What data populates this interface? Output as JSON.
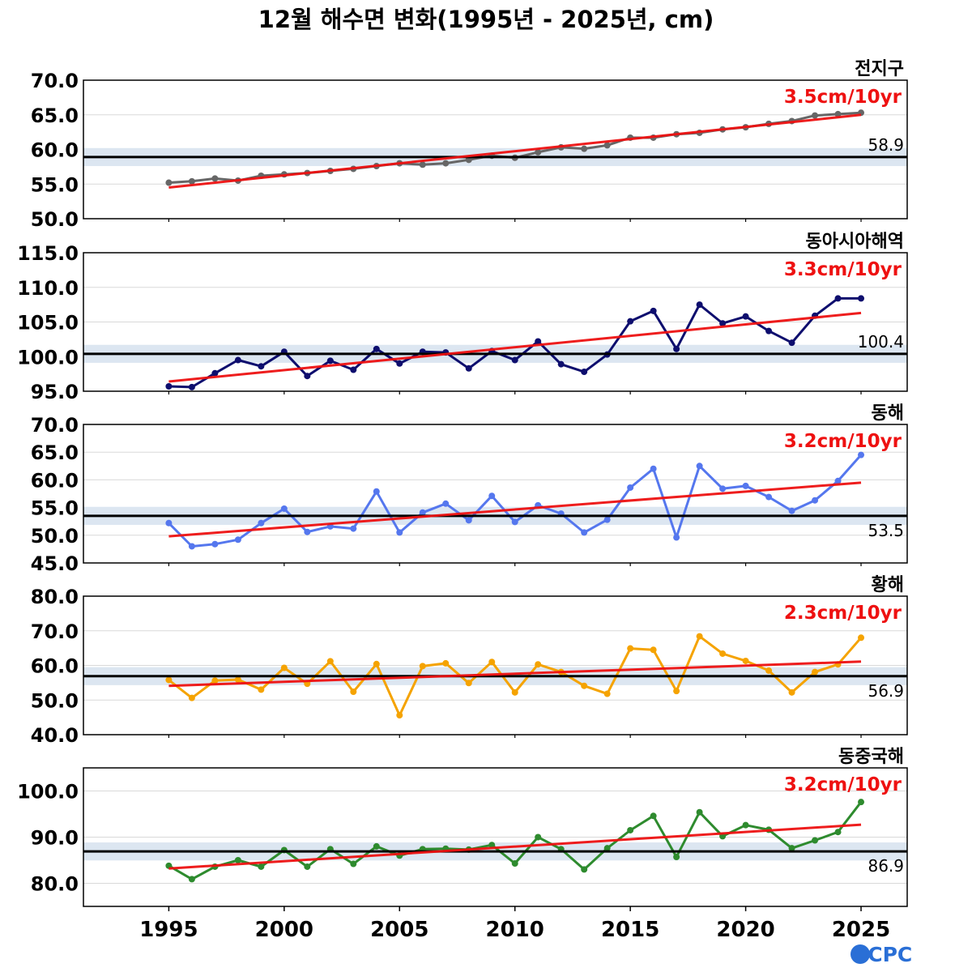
{
  "title": "12월 해수면 변화(1995년 - 2025년, cm)",
  "logo_text": "OCPC",
  "colors": {
    "trend": "#ee1111",
    "mean_line": "#000000",
    "mean_band": "#dce6f1",
    "grid": "#d9d9d9"
  },
  "chart_data": [
    {
      "type": "line",
      "name": "전지구",
      "trend_label": "3.5cm/10yr",
      "mean_label": "58.9",
      "mean": 58.9,
      "color": "#666666",
      "ylim": [
        50,
        70
      ],
      "yticks": [
        50,
        55,
        60,
        65,
        70
      ],
      "yticklabels": [
        "50.0",
        "55.0",
        "60.0",
        "65.0",
        "70.0"
      ],
      "x": [
        1995,
        1996,
        1997,
        1998,
        1999,
        2000,
        2001,
        2002,
        2003,
        2004,
        2005,
        2006,
        2007,
        2008,
        2009,
        2010,
        2011,
        2012,
        2013,
        2014,
        2015,
        2016,
        2017,
        2018,
        2019,
        2020,
        2021,
        2022,
        2023,
        2024,
        2025
      ],
      "values": [
        55.2,
        55.4,
        55.8,
        55.5,
        56.2,
        56.4,
        56.6,
        56.9,
        57.2,
        57.6,
        58.0,
        57.8,
        58.0,
        58.5,
        59.1,
        58.8,
        59.6,
        60.3,
        60.1,
        60.6,
        61.7,
        61.7,
        62.2,
        62.4,
        62.9,
        63.2,
        63.7,
        64.1,
        64.9,
        65.1,
        65.3
      ],
      "trend": [
        54.5,
        65.0
      ]
    },
    {
      "type": "line",
      "name": "동아시아해역",
      "trend_label": "3.3cm/10yr",
      "mean_label": "100.4",
      "mean": 100.4,
      "color": "#0e0e6e",
      "ylim": [
        95,
        115
      ],
      "yticks": [
        95,
        100,
        105,
        110,
        115
      ],
      "yticklabels": [
        "95.0",
        "100.0",
        "105.0",
        "110.0",
        "115.0"
      ],
      "x": [
        1995,
        1996,
        1997,
        1998,
        1999,
        2000,
        2001,
        2002,
        2003,
        2004,
        2005,
        2006,
        2007,
        2008,
        2009,
        2010,
        2011,
        2012,
        2013,
        2014,
        2015,
        2016,
        2017,
        2018,
        2019,
        2020,
        2021,
        2022,
        2023,
        2024,
        2025
      ],
      "values": [
        95.7,
        95.6,
        97.6,
        99.5,
        98.6,
        100.7,
        97.2,
        99.4,
        98.1,
        101.1,
        99.0,
        100.7,
        100.6,
        98.3,
        100.8,
        99.5,
        102.2,
        98.9,
        97.8,
        100.3,
        105.1,
        106.6,
        101.1,
        107.5,
        104.8,
        105.8,
        103.7,
        102.0,
        105.9,
        108.4,
        108.4
      ],
      "trend": [
        96.4,
        106.3
      ]
    },
    {
      "type": "line",
      "name": "동해",
      "trend_label": "3.2cm/10yr",
      "mean_label": "53.5",
      "mean": 53.5,
      "color": "#5577ee",
      "ylim": [
        45,
        70
      ],
      "yticks": [
        45,
        50,
        55,
        60,
        65,
        70
      ],
      "yticklabels": [
        "45.0",
        "50.0",
        "55.0",
        "60.0",
        "65.0",
        "70.0"
      ],
      "x": [
        1995,
        1996,
        1997,
        1998,
        1999,
        2000,
        2001,
        2002,
        2003,
        2004,
        2005,
        2006,
        2007,
        2008,
        2009,
        2010,
        2011,
        2012,
        2013,
        2014,
        2015,
        2016,
        2017,
        2018,
        2019,
        2020,
        2021,
        2022,
        2023,
        2024,
        2025
      ],
      "values": [
        52.2,
        48.0,
        48.4,
        49.2,
        52.2,
        54.8,
        50.6,
        51.6,
        51.2,
        57.9,
        50.5,
        54.1,
        55.7,
        52.7,
        57.1,
        52.4,
        55.4,
        53.9,
        50.5,
        52.8,
        58.6,
        62.0,
        49.6,
        62.5,
        58.4,
        58.9,
        56.9,
        54.4,
        56.3,
        59.8,
        64.5
      ],
      "trend": [
        49.8,
        59.5
      ]
    },
    {
      "type": "line",
      "name": "황해",
      "trend_label": "2.3cm/10yr",
      "mean_label": "56.9",
      "mean": 56.9,
      "color": "#f5a300",
      "ylim": [
        40,
        80
      ],
      "yticks": [
        40,
        50,
        60,
        70,
        80
      ],
      "yticklabels": [
        "40.0",
        "50.0",
        "60.0",
        "70.0",
        "80.0"
      ],
      "x": [
        1995,
        1996,
        1997,
        1998,
        1999,
        2000,
        2001,
        2002,
        2003,
        2004,
        2005,
        2006,
        2007,
        2008,
        2009,
        2010,
        2011,
        2012,
        2013,
        2014,
        2015,
        2016,
        2017,
        2018,
        2019,
        2020,
        2021,
        2022,
        2023,
        2024,
        2025
      ],
      "values": [
        55.8,
        50.6,
        55.6,
        55.9,
        53.0,
        59.3,
        54.7,
        61.2,
        52.4,
        60.4,
        45.6,
        59.8,
        60.6,
        54.9,
        61.0,
        52.2,
        60.3,
        58.1,
        54.1,
        51.8,
        64.9,
        64.5,
        52.6,
        68.4,
        63.4,
        61.3,
        58.5,
        52.2,
        58.1,
        60.3,
        68.0
      ],
      "trend": [
        54.1,
        61.1
      ]
    },
    {
      "type": "line",
      "name": "동중국해",
      "trend_label": "3.2cm/10yr",
      "mean_label": "86.9",
      "mean": 86.9,
      "color": "#2e8b2e",
      "ylim": [
        75,
        105
      ],
      "yticks": [
        80,
        90,
        100
      ],
      "yticklabels": [
        "80.0",
        "90.0",
        "100.0"
      ],
      "x": [
        1995,
        1996,
        1997,
        1998,
        1999,
        2000,
        2001,
        2002,
        2003,
        2004,
        2005,
        2006,
        2007,
        2008,
        2009,
        2010,
        2011,
        2012,
        2013,
        2014,
        2015,
        2016,
        2017,
        2018,
        2019,
        2020,
        2021,
        2022,
        2023,
        2024,
        2025
      ],
      "values": [
        83.8,
        80.9,
        83.6,
        85.0,
        83.6,
        87.2,
        83.6,
        87.4,
        84.2,
        88.0,
        86.0,
        87.4,
        87.5,
        87.3,
        88.3,
        84.3,
        90.0,
        87.4,
        83.0,
        87.6,
        91.5,
        94.6,
        85.7,
        95.4,
        90.2,
        92.6,
        91.6,
        87.6,
        89.3,
        91.1,
        97.6
      ],
      "trend": [
        83.2,
        92.7
      ]
    }
  ],
  "x_axis": {
    "xlim": [
      1991.3,
      2027.0
    ],
    "ticks": [
      1995,
      2000,
      2005,
      2010,
      2015,
      2020,
      2025
    ],
    "ticklabels": [
      "1995",
      "2000",
      "2005",
      "2010",
      "2015",
      "2020",
      "2025"
    ]
  }
}
